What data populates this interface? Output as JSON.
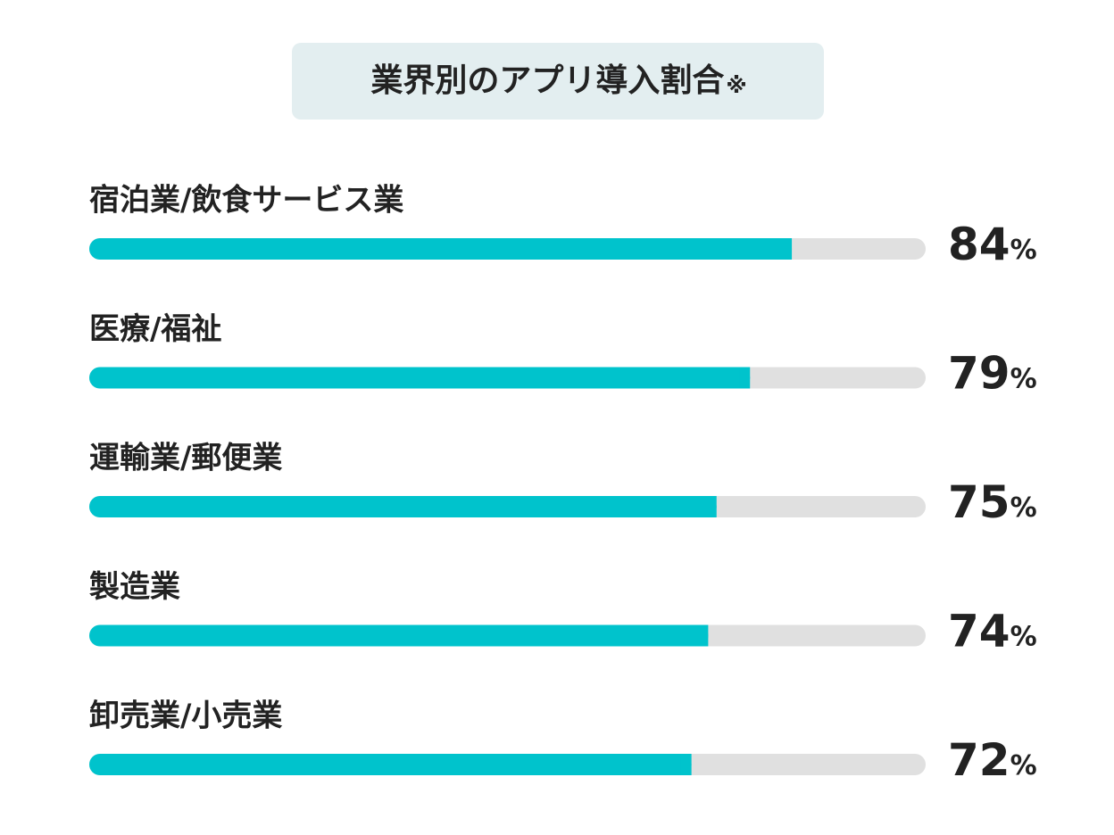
{
  "chart_data": {
    "type": "progress-bar",
    "title": "業界別のアプリ導入割合",
    "title_note": "※",
    "categories": [
      "宿泊業/飲食サービス業",
      "医療/福祉",
      "運輸業/郵便業",
      "製造業",
      "卸売業/小売業"
    ],
    "values": [
      84,
      79,
      75,
      74,
      72
    ],
    "value_labels": [
      "84%",
      "79%",
      "75%",
      "74%",
      "72%"
    ],
    "xlim": [
      0,
      100
    ],
    "color": "#00c3cc",
    "track_color": "#e0e0e0"
  }
}
